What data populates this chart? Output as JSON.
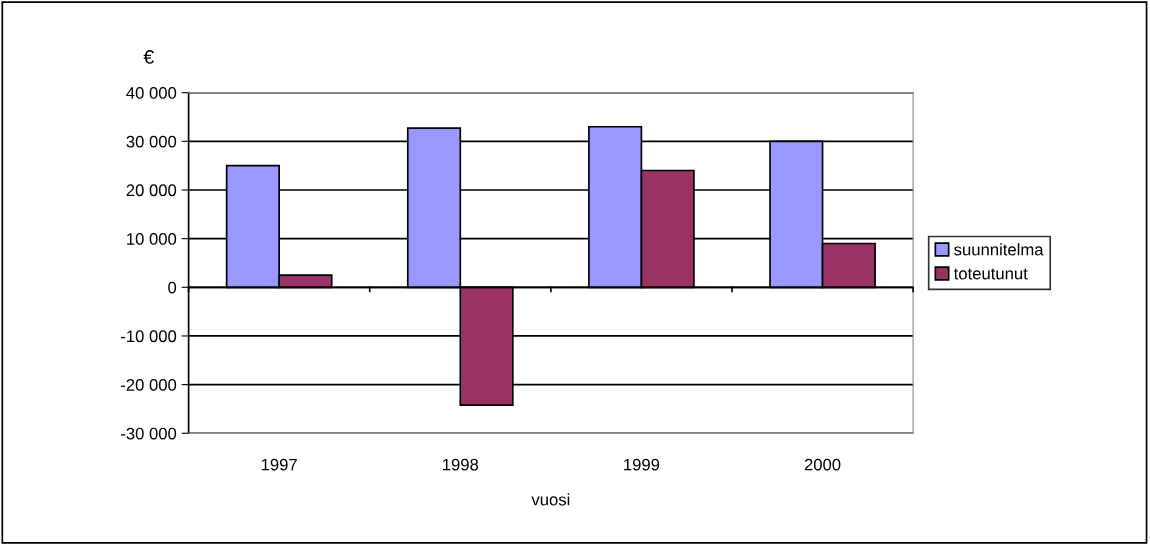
{
  "chart_data": {
    "type": "bar",
    "ylabel": "€",
    "xlabel": "vuosi",
    "categories": [
      "1997",
      "1998",
      "1999",
      "2000"
    ],
    "series": [
      {
        "name": "suunnitelma",
        "color": "#9999ff",
        "values": [
          25000,
          32700,
          33000,
          30000
        ]
      },
      {
        "name": "toteutunut",
        "color": "#993366",
        "values": [
          2500,
          -24200,
          24000,
          9000
        ]
      }
    ],
    "ylim": [
      -30000,
      40000
    ],
    "yticks": [
      {
        "value": -30000,
        "label": "-30 000"
      },
      {
        "value": -20000,
        "label": "-20 000"
      },
      {
        "value": -10000,
        "label": "-10 000"
      },
      0,
      {
        "value": 10000,
        "label": "10 000"
      },
      {
        "value": 20000,
        "label": "20 000"
      },
      {
        "value": 30000,
        "label": "30 000"
      },
      {
        "value": 40000,
        "label": "40 000"
      }
    ],
    "grid": "y",
    "legend": "right"
  }
}
